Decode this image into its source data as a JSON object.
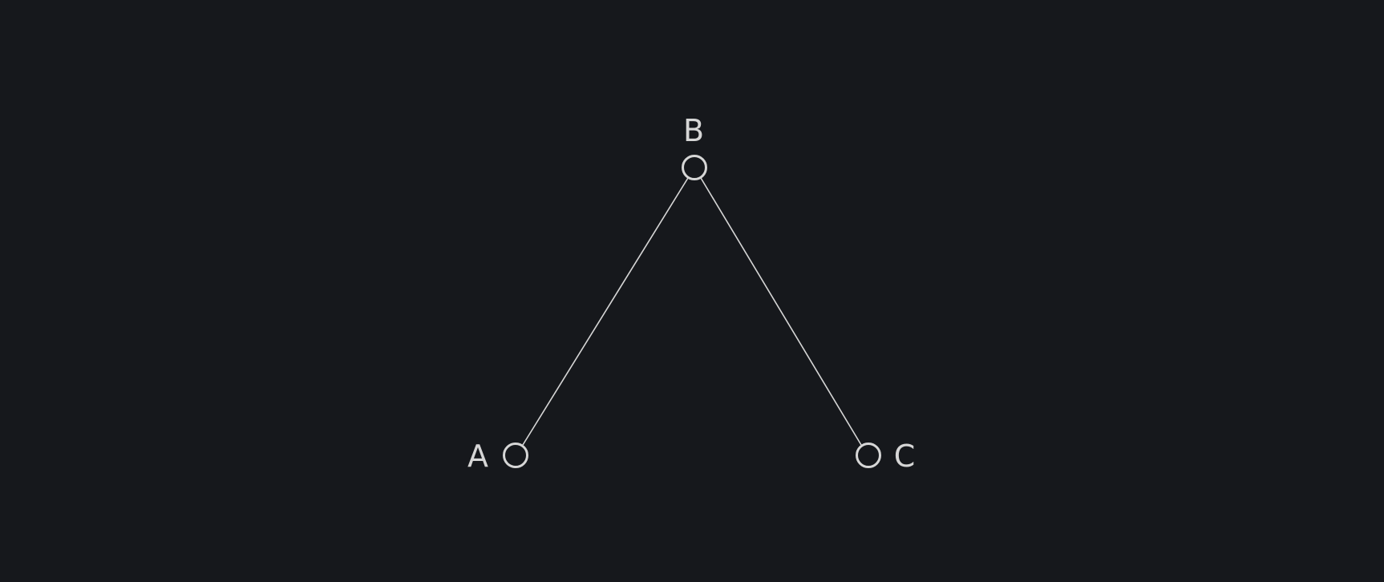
{
  "diagram": {
    "nodes": [
      {
        "id": "A",
        "label": "A"
      },
      {
        "id": "B",
        "label": "B"
      },
      {
        "id": "C",
        "label": "C"
      }
    ],
    "edges": [
      {
        "from": "A",
        "to": "B"
      },
      {
        "from": "B",
        "to": "C"
      }
    ]
  }
}
